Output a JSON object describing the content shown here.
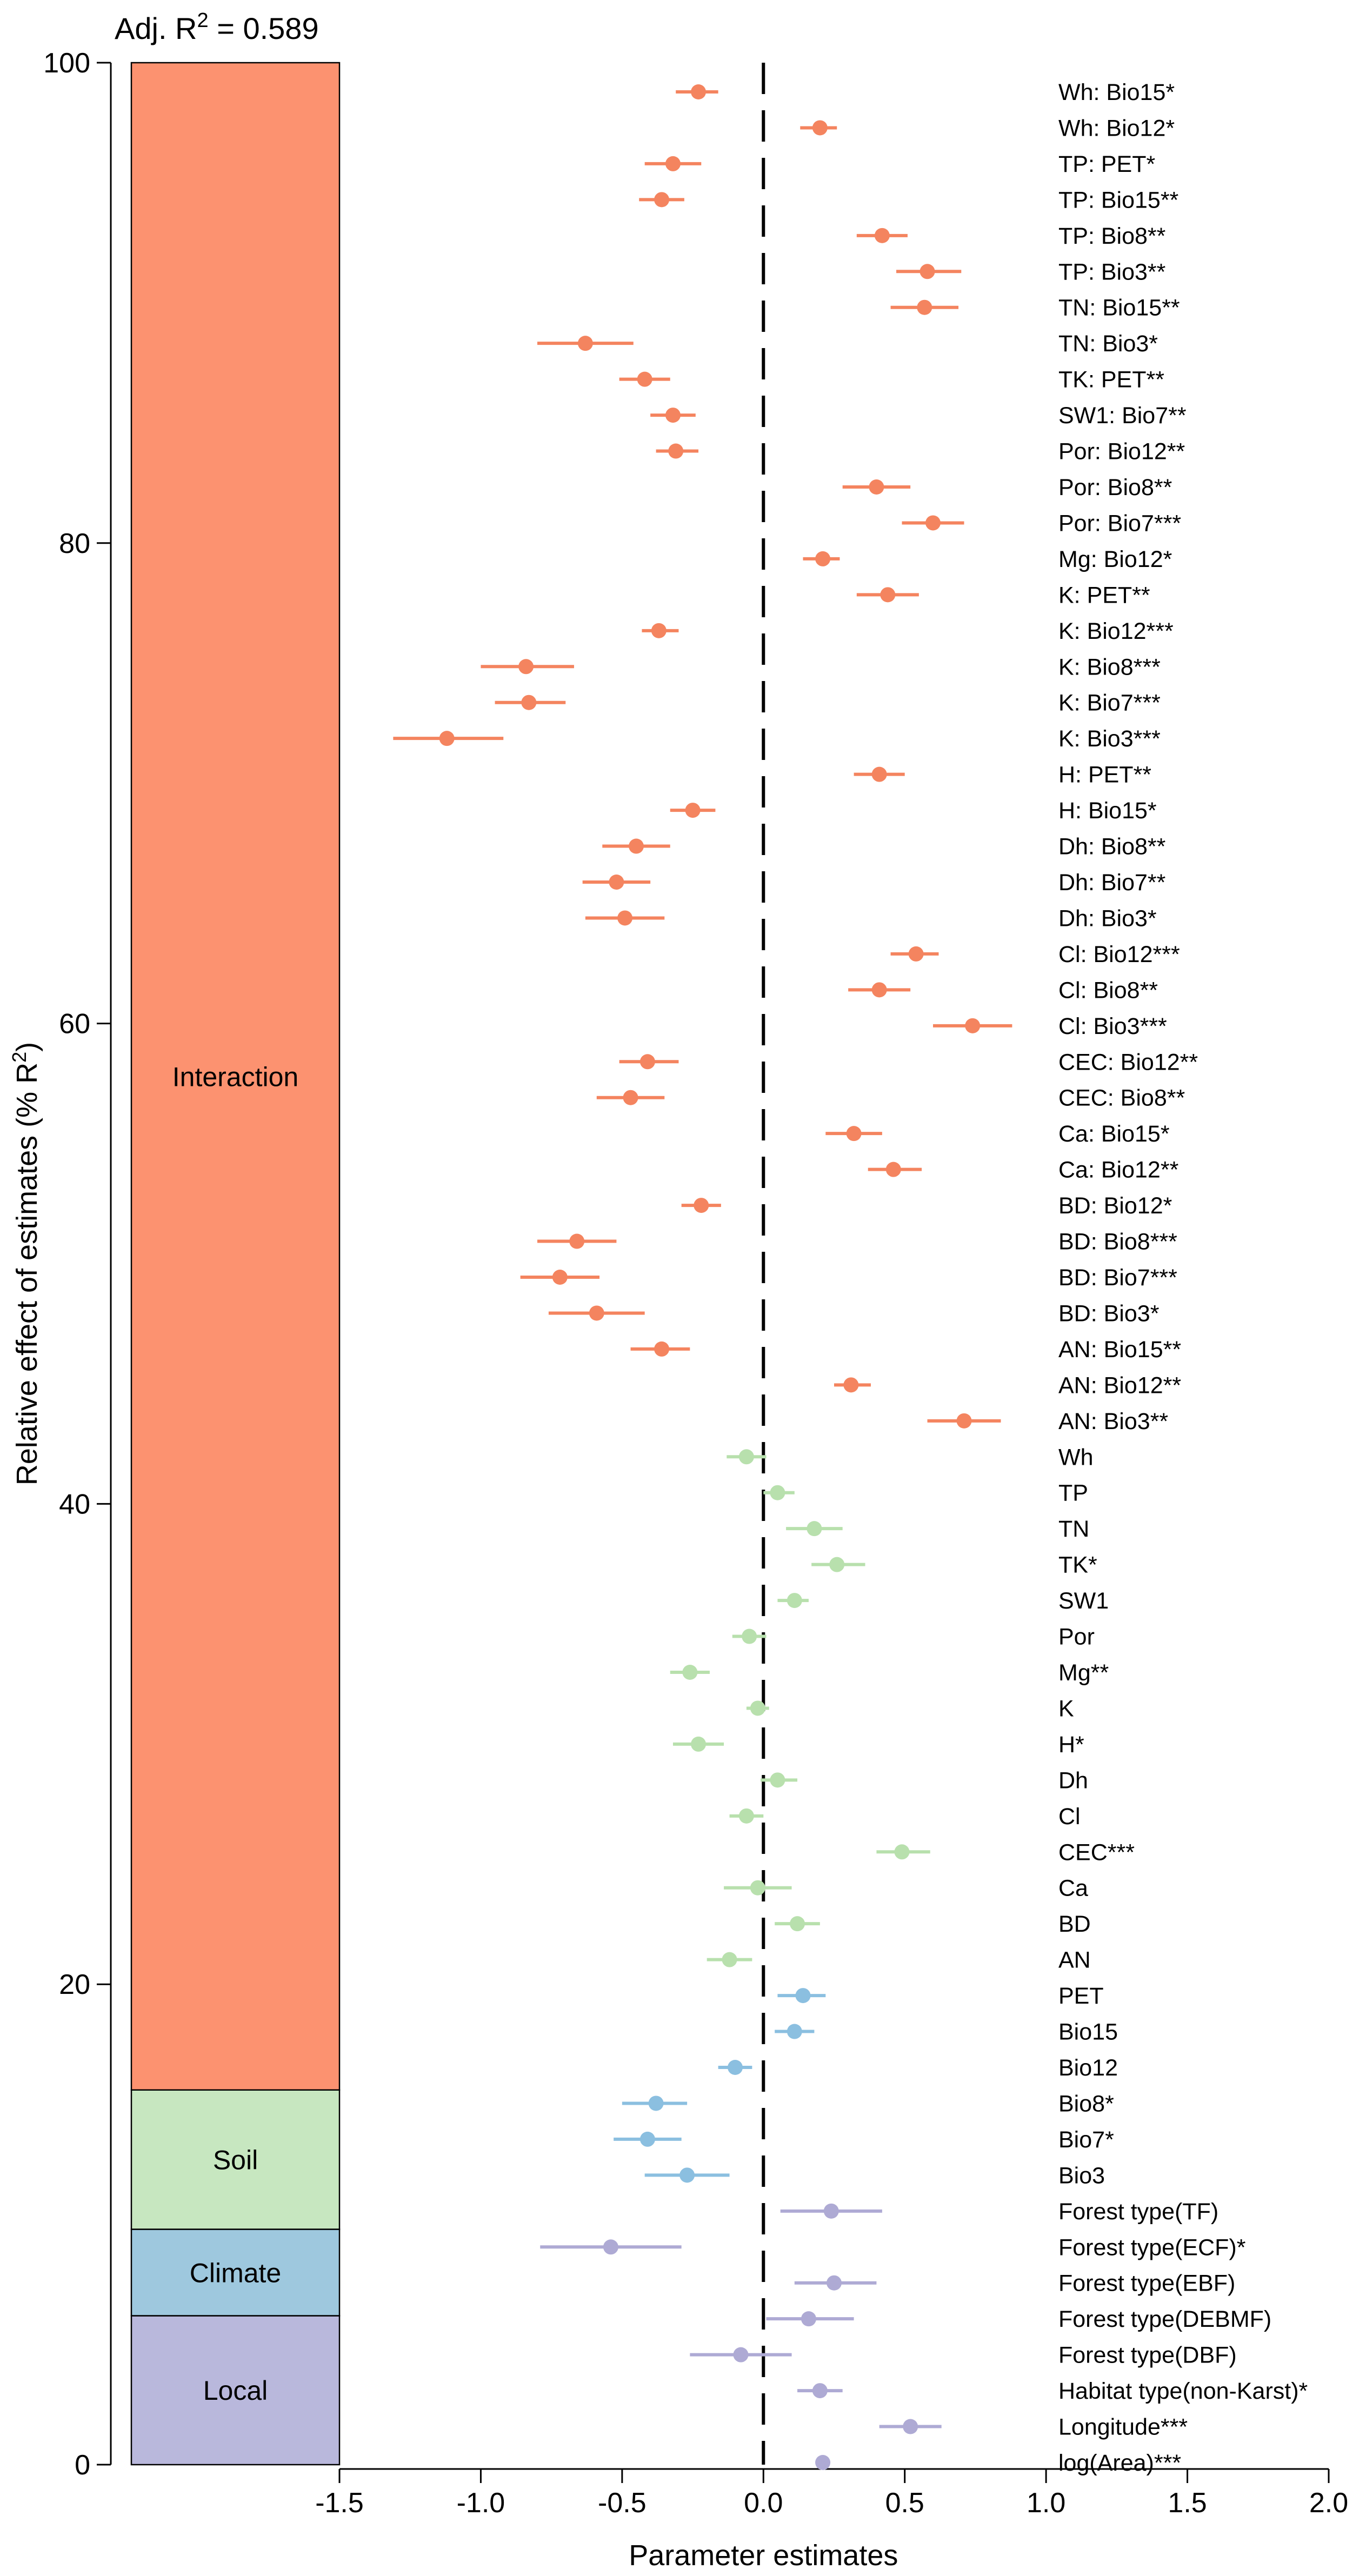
{
  "chart_data": [
    {
      "type": "stacked-bar",
      "annotation": "Adj. R",
      "annotation_sup": "2",
      "annotation_value": " = 0.589",
      "ylabel": "Relative effect of estimates (% R",
      "ylabel_sup": "2",
      "ylabel_end": ")",
      "ylim": [
        0,
        100
      ],
      "yticks": [
        0,
        20,
        40,
        60,
        80,
        100
      ],
      "segments": [
        {
          "name": "Local",
          "start": 0,
          "end": 6.2,
          "color": "#b9b8dc"
        },
        {
          "name": "Climate",
          "start": 6.2,
          "end": 9.8,
          "color": "#9ec8de"
        },
        {
          "name": "Soil",
          "start": 9.8,
          "end": 15.6,
          "color": "#c7e7c0"
        },
        {
          "name": "Interaction",
          "start": 15.6,
          "end": 100,
          "color": "#fc9270"
        }
      ]
    },
    {
      "type": "forest",
      "xlabel": "Parameter estimates",
      "xlim": [
        -1.5,
        2.0
      ],
      "xticks": [
        "-1.5",
        "-1.0",
        "-0.5",
        "0.0",
        "0.5",
        "1.0",
        "1.5",
        "2.0"
      ],
      "reference_line": 0,
      "group_colors": {
        "Interaction": "#f4845f",
        "Soil": "#b8e0ad",
        "Climate": "#8bbfe0",
        "Local": "#aeaad4"
      },
      "terms": [
        {
          "label": "Wh: Bio15*",
          "group": "Interaction",
          "estimate": -0.23,
          "low": -0.31,
          "high": -0.16
        },
        {
          "label": "Wh: Bio12*",
          "group": "Interaction",
          "estimate": 0.2,
          "low": 0.13,
          "high": 0.26
        },
        {
          "label": "TP: PET*",
          "group": "Interaction",
          "estimate": -0.32,
          "low": -0.42,
          "high": -0.22
        },
        {
          "label": "TP: Bio15**",
          "group": "Interaction",
          "estimate": -0.36,
          "low": -0.44,
          "high": -0.28
        },
        {
          "label": "TP: Bio8**",
          "group": "Interaction",
          "estimate": 0.42,
          "low": 0.33,
          "high": 0.51
        },
        {
          "label": "TP: Bio3**",
          "group": "Interaction",
          "estimate": 0.58,
          "low": 0.47,
          "high": 0.7
        },
        {
          "label": "TN: Bio15**",
          "group": "Interaction",
          "estimate": 0.57,
          "low": 0.45,
          "high": 0.69
        },
        {
          "label": "TN: Bio3*",
          "group": "Interaction",
          "estimate": -0.63,
          "low": -0.8,
          "high": -0.46
        },
        {
          "label": "TK: PET**",
          "group": "Interaction",
          "estimate": -0.42,
          "low": -0.51,
          "high": -0.33
        },
        {
          "label": "SW1: Bio7**",
          "group": "Interaction",
          "estimate": -0.32,
          "low": -0.4,
          "high": -0.24
        },
        {
          "label": "Por: Bio12**",
          "group": "Interaction",
          "estimate": -0.31,
          "low": -0.38,
          "high": -0.23
        },
        {
          "label": "Por: Bio8**",
          "group": "Interaction",
          "estimate": 0.4,
          "low": 0.28,
          "high": 0.52
        },
        {
          "label": "Por: Bio7***",
          "group": "Interaction",
          "estimate": 0.6,
          "low": 0.49,
          "high": 0.71
        },
        {
          "label": "Mg: Bio12*",
          "group": "Interaction",
          "estimate": 0.21,
          "low": 0.14,
          "high": 0.27
        },
        {
          "label": "K: PET**",
          "group": "Interaction",
          "estimate": 0.44,
          "low": 0.33,
          "high": 0.55
        },
        {
          "label": "K: Bio12***",
          "group": "Interaction",
          "estimate": -0.37,
          "low": -0.43,
          "high": -0.3
        },
        {
          "label": "K: Bio8***",
          "group": "Interaction",
          "estimate": -0.84,
          "low": -1.0,
          "high": -0.67
        },
        {
          "label": "K: Bio7***",
          "group": "Interaction",
          "estimate": -0.83,
          "low": -0.95,
          "high": -0.7
        },
        {
          "label": "K: Bio3***",
          "group": "Interaction",
          "estimate": -1.12,
          "low": -1.31,
          "high": -0.92
        },
        {
          "label": "H: PET**",
          "group": "Interaction",
          "estimate": 0.41,
          "low": 0.32,
          "high": 0.5
        },
        {
          "label": "H: Bio15*",
          "group": "Interaction",
          "estimate": -0.25,
          "low": -0.33,
          "high": -0.17
        },
        {
          "label": "Dh: Bio8**",
          "group": "Interaction",
          "estimate": -0.45,
          "low": -0.57,
          "high": -0.33
        },
        {
          "label": "Dh: Bio7**",
          "group": "Interaction",
          "estimate": -0.52,
          "low": -0.64,
          "high": -0.4
        },
        {
          "label": "Dh: Bio3*",
          "group": "Interaction",
          "estimate": -0.49,
          "low": -0.63,
          "high": -0.35
        },
        {
          "label": "Cl: Bio12***",
          "group": "Interaction",
          "estimate": 0.54,
          "low": 0.45,
          "high": 0.62
        },
        {
          "label": "Cl: Bio8**",
          "group": "Interaction",
          "estimate": 0.41,
          "low": 0.3,
          "high": 0.52
        },
        {
          "label": "Cl: Bio3***",
          "group": "Interaction",
          "estimate": 0.74,
          "low": 0.6,
          "high": 0.88
        },
        {
          "label": "CEC: Bio12**",
          "group": "Interaction",
          "estimate": -0.41,
          "low": -0.51,
          "high": -0.3
        },
        {
          "label": "CEC: Bio8**",
          "group": "Interaction",
          "estimate": -0.47,
          "low": -0.59,
          "high": -0.35
        },
        {
          "label": "Ca: Bio15*",
          "group": "Interaction",
          "estimate": 0.32,
          "low": 0.22,
          "high": 0.42
        },
        {
          "label": "Ca: Bio12**",
          "group": "Interaction",
          "estimate": 0.46,
          "low": 0.37,
          "high": 0.56
        },
        {
          "label": "BD: Bio12*",
          "group": "Interaction",
          "estimate": -0.22,
          "low": -0.29,
          "high": -0.15
        },
        {
          "label": "BD: Bio8***",
          "group": "Interaction",
          "estimate": -0.66,
          "low": -0.8,
          "high": -0.52
        },
        {
          "label": "BD: Bio7***",
          "group": "Interaction",
          "estimate": -0.72,
          "low": -0.86,
          "high": -0.58
        },
        {
          "label": "BD: Bio3*",
          "group": "Interaction",
          "estimate": -0.59,
          "low": -0.76,
          "high": -0.42
        },
        {
          "label": "AN: Bio15**",
          "group": "Interaction",
          "estimate": -0.36,
          "low": -0.47,
          "high": -0.26
        },
        {
          "label": "AN: Bio12**",
          "group": "Interaction",
          "estimate": 0.31,
          "low": 0.25,
          "high": 0.38
        },
        {
          "label": "AN: Bio3**",
          "group": "Interaction",
          "estimate": 0.71,
          "low": 0.58,
          "high": 0.84
        },
        {
          "label": "Wh",
          "group": "Soil",
          "estimate": -0.06,
          "low": -0.13,
          "high": 0.01
        },
        {
          "label": "TP",
          "group": "Soil",
          "estimate": 0.05,
          "low": 0.0,
          "high": 0.11
        },
        {
          "label": "TN",
          "group": "Soil",
          "estimate": 0.18,
          "low": 0.08,
          "high": 0.28
        },
        {
          "label": "TK*",
          "group": "Soil",
          "estimate": 0.26,
          "low": 0.17,
          "high": 0.36
        },
        {
          "label": "SW1",
          "group": "Soil",
          "estimate": 0.11,
          "low": 0.05,
          "high": 0.16
        },
        {
          "label": "Por",
          "group": "Soil",
          "estimate": -0.05,
          "low": -0.11,
          "high": 0.01
        },
        {
          "label": "Mg**",
          "group": "Soil",
          "estimate": -0.26,
          "low": -0.33,
          "high": -0.19
        },
        {
          "label": "K",
          "group": "Soil",
          "estimate": -0.02,
          "low": -0.06,
          "high": 0.02
        },
        {
          "label": "H*",
          "group": "Soil",
          "estimate": -0.23,
          "low": -0.32,
          "high": -0.14
        },
        {
          "label": "Dh",
          "group": "Soil",
          "estimate": 0.05,
          "low": -0.01,
          "high": 0.12
        },
        {
          "label": "Cl",
          "group": "Soil",
          "estimate": -0.06,
          "low": -0.12,
          "high": 0.0
        },
        {
          "label": "CEC***",
          "group": "Soil",
          "estimate": 0.49,
          "low": 0.4,
          "high": 0.59
        },
        {
          "label": "Ca",
          "group": "Soil",
          "estimate": -0.02,
          "low": -0.14,
          "high": 0.1
        },
        {
          "label": "BD",
          "group": "Soil",
          "estimate": 0.12,
          "low": 0.04,
          "high": 0.2
        },
        {
          "label": "AN",
          "group": "Soil",
          "estimate": -0.12,
          "low": -0.2,
          "high": -0.04
        },
        {
          "label": "PET",
          "group": "Climate",
          "estimate": 0.14,
          "low": 0.05,
          "high": 0.22
        },
        {
          "label": "Bio15",
          "group": "Climate",
          "estimate": 0.11,
          "low": 0.04,
          "high": 0.18
        },
        {
          "label": "Bio12",
          "group": "Climate",
          "estimate": -0.1,
          "low": -0.16,
          "high": -0.04
        },
        {
          "label": "Bio8*",
          "group": "Climate",
          "estimate": -0.38,
          "low": -0.5,
          "high": -0.27
        },
        {
          "label": "Bio7*",
          "group": "Climate",
          "estimate": -0.41,
          "low": -0.53,
          "high": -0.29
        },
        {
          "label": "Bio3",
          "group": "Climate",
          "estimate": -0.27,
          "low": -0.42,
          "high": -0.12
        },
        {
          "label": "Forest type(TF)",
          "group": "Local",
          "estimate": 0.24,
          "low": 0.06,
          "high": 0.42
        },
        {
          "label": "Forest type(ECF)*",
          "group": "Local",
          "estimate": -0.54,
          "low": -0.79,
          "high": -0.29
        },
        {
          "label": "Forest type(EBF)",
          "group": "Local",
          "estimate": 0.25,
          "low": 0.11,
          "high": 0.4
        },
        {
          "label": "Forest type(DEBMF)",
          "group": "Local",
          "estimate": 0.16,
          "low": 0.01,
          "high": 0.32
        },
        {
          "label": "Forest type(DBF)",
          "group": "Local",
          "estimate": -0.08,
          "low": -0.26,
          "high": 0.1
        },
        {
          "label": "Habitat type(non-Karst)*",
          "group": "Local",
          "estimate": 0.2,
          "low": 0.12,
          "high": 0.28
        },
        {
          "label": "Longitude***",
          "group": "Local",
          "estimate": 0.52,
          "low": 0.41,
          "high": 0.63
        },
        {
          "label": "log(Area)***",
          "group": "Local",
          "estimate": 0.21,
          "low": 0.19,
          "high": 0.23
        }
      ]
    }
  ]
}
